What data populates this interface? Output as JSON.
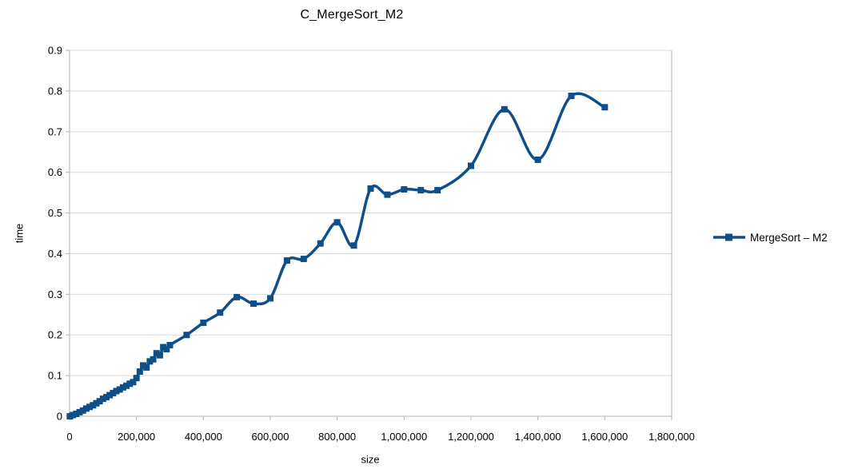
{
  "chart_data": {
    "type": "line",
    "title": "C_MergeSort_M2",
    "xlabel": "size",
    "ylabel": "time",
    "xlim": [
      0,
      1800000
    ],
    "ylim": [
      0,
      0.9
    ],
    "grid": "horizontal",
    "smooth_lines": true,
    "legend_position": "right",
    "x_ticks": {
      "values": [
        0,
        200000,
        400000,
        600000,
        800000,
        1000000,
        1200000,
        1400000,
        1600000,
        1800000
      ],
      "labels": [
        "0",
        "200,000",
        "400,000",
        "600,000",
        "800,000",
        "1,000,000",
        "1,200,000",
        "1,400,000",
        "1,600,000",
        "1,800,000"
      ]
    },
    "y_ticks": {
      "values": [
        0,
        0.1,
        0.2,
        0.3,
        0.4,
        0.5,
        0.6,
        0.7,
        0.8,
        0.9
      ],
      "labels": [
        "0",
        "0.1",
        "0.2",
        "0.3",
        "0.4",
        "0.5",
        "0.6",
        "0.7",
        "0.8",
        "0.9"
      ]
    },
    "series": [
      {
        "name": "MergeSort – M2",
        "color": "#0e4f87",
        "marker": "square",
        "x": [
          1000,
          10000,
          20000,
          30000,
          40000,
          50000,
          60000,
          70000,
          80000,
          90000,
          100000,
          110000,
          120000,
          130000,
          140000,
          150000,
          160000,
          170000,
          180000,
          190000,
          200000,
          210000,
          220000,
          230000,
          240000,
          250000,
          260000,
          270000,
          280000,
          290000,
          300000,
          350000,
          400000,
          450000,
          500000,
          550000,
          600000,
          650000,
          700000,
          750000,
          800000,
          850000,
          900000,
          950000,
          1000000,
          1050000,
          1100000,
          1200000,
          1300000,
          1400000,
          1500000,
          1600000
        ],
        "y": [
          0.0,
          0.003,
          0.006,
          0.01,
          0.014,
          0.019,
          0.023,
          0.027,
          0.032,
          0.037,
          0.043,
          0.047,
          0.052,
          0.057,
          0.062,
          0.066,
          0.071,
          0.075,
          0.08,
          0.084,
          0.094,
          0.11,
          0.125,
          0.12,
          0.135,
          0.14,
          0.155,
          0.15,
          0.17,
          0.165,
          0.175,
          0.2,
          0.23,
          0.255,
          0.293,
          0.277,
          0.29,
          0.383,
          0.387,
          0.425,
          0.477,
          0.42,
          0.56,
          0.545,
          0.558,
          0.556,
          0.556,
          0.616,
          0.755,
          0.631,
          0.788,
          0.76
        ]
      }
    ]
  },
  "style": {
    "background": "#ffffff",
    "grid_color": "#d9d9d9",
    "axis_color": "#b3b3b3",
    "text_color": "#000000",
    "series_color": "#0e4f87"
  }
}
